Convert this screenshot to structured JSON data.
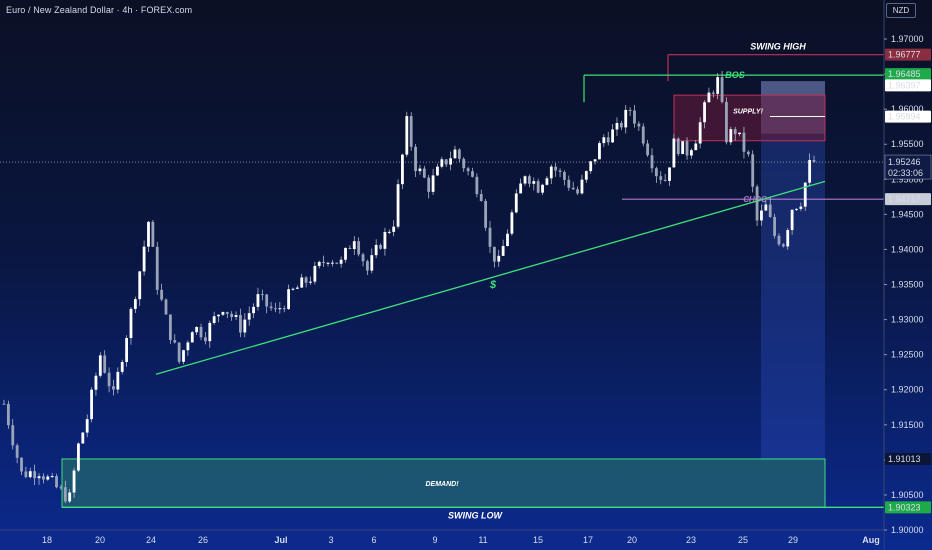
{
  "header": {
    "title": "Euro / New Zealand Dollar · 4h · FOREX.com"
  },
  "price_axis": {
    "currency": "NZD",
    "ticks": [
      "1.97000",
      "1.96500",
      "1.96000",
      "1.95500",
      "1.95000",
      "1.94500",
      "1.94000",
      "1.93500",
      "1.93000",
      "1.92500",
      "1.92000",
      "1.91500",
      "1.91000",
      "1.90500",
      "1.90000"
    ],
    "labels": {
      "swing_high": "1.96777",
      "bos": "1.96485",
      "upper_gray": "1.96397",
      "supply_white": "1.95894",
      "current_price": "1.95246",
      "countdown": "02:33:06",
      "choch": "1.94717",
      "demand_top": "1.91013",
      "swing_low": "1.90323"
    }
  },
  "time_axis": {
    "ticks": [
      "18",
      "20",
      "24",
      "26",
      "Jul",
      "3",
      "6",
      "9",
      "11",
      "15",
      "17",
      "20",
      "23",
      "25",
      "29",
      "Aug"
    ]
  },
  "annotations": {
    "swing_high": "SWING HIGH",
    "bos": "BOS",
    "supply": "SUPPLY!",
    "choch": "CHOC",
    "liquidity": "$",
    "demand": "DEMAND!",
    "swing_low": "SWING LOW"
  },
  "colors": {
    "bull": "#ffffff",
    "bear": "#9aa4b8",
    "wick": "#c8cee0",
    "green_line": "#3ee07a",
    "supply_border": "#c0325a",
    "demand_fill": "#1e5e6e",
    "choch_line": "#b57ad0",
    "swing_high_badge": "#8a2d3f",
    "green_badge": "#1faa4a",
    "gray_badge": "#c8cdd8"
  },
  "chart_data": {
    "type": "candlestick",
    "timeframe": "4h",
    "symbol": "EURNZD",
    "ylim": [
      1.9,
      1.973
    ],
    "close_path": [
      [
        0,
        1.918
      ],
      [
        4,
        1.908
      ],
      [
        8,
        1.9085
      ],
      [
        12,
        1.906
      ],
      [
        15,
        1.9045
      ],
      [
        17,
        1.912
      ],
      [
        19,
        1.916
      ],
      [
        22,
        1.925
      ],
      [
        25,
        1.919
      ],
      [
        28,
        1.928
      ],
      [
        31,
        1.937
      ],
      [
        33,
        1.944
      ],
      [
        35,
        1.935
      ],
      [
        37,
        1.93
      ],
      [
        40,
        1.924
      ],
      [
        43,
        1.929
      ],
      [
        46,
        1.928
      ],
      [
        50,
        1.932
      ],
      [
        54,
        1.929
      ],
      [
        58,
        1.933
      ],
      [
        62,
        1.931
      ],
      [
        66,
        1.934
      ],
      [
        70,
        1.936
      ],
      [
        74,
        1.939
      ],
      [
        77,
        1.938
      ],
      [
        80,
        1.942
      ],
      [
        83,
        1.937
      ],
      [
        86,
        1.941
      ],
      [
        89,
        1.944
      ],
      [
        92,
        1.958
      ],
      [
        94,
        1.952
      ],
      [
        97,
        1.949
      ],
      [
        100,
        1.952
      ],
      [
        103,
        1.954
      ],
      [
        106,
        1.951
      ],
      [
        109,
        1.948
      ],
      [
        111,
        1.94
      ],
      [
        113,
        1.938
      ],
      [
        116,
        1.945
      ],
      [
        119,
        1.951
      ],
      [
        122,
        1.949
      ],
      [
        125,
        1.952
      ],
      [
        128,
        1.95
      ],
      [
        131,
        1.948
      ],
      [
        134,
        1.952
      ],
      [
        137,
        1.956
      ],
      [
        140,
        1.957
      ],
      [
        143,
        1.96
      ],
      [
        146,
        1.956
      ],
      [
        149,
        1.951
      ],
      [
        151,
        1.95
      ],
      [
        153,
        1.955
      ],
      [
        156,
        1.954
      ],
      [
        158,
        1.956
      ],
      [
        161,
        1.962
      ],
      [
        163,
        1.964
      ],
      [
        165,
        1.956
      ],
      [
        167,
        1.957
      ],
      [
        170,
        1.953
      ],
      [
        172,
        1.944
      ],
      [
        174,
        1.946
      ],
      [
        176,
        1.942
      ],
      [
        178,
        1.941
      ],
      [
        180,
        1.946
      ],
      [
        182,
        1.947
      ],
      [
        184,
        1.952
      ],
      [
        185,
        1.9525
      ]
    ],
    "levels": {
      "swing_high": 1.96777,
      "bos": 1.96485,
      "supply_zone": [
        1.9555,
        1.962
      ],
      "choch": 1.94717,
      "demand_zone": [
        1.90323,
        1.91013
      ],
      "swing_low": 1.90323,
      "current_price": 1.95246
    }
  }
}
